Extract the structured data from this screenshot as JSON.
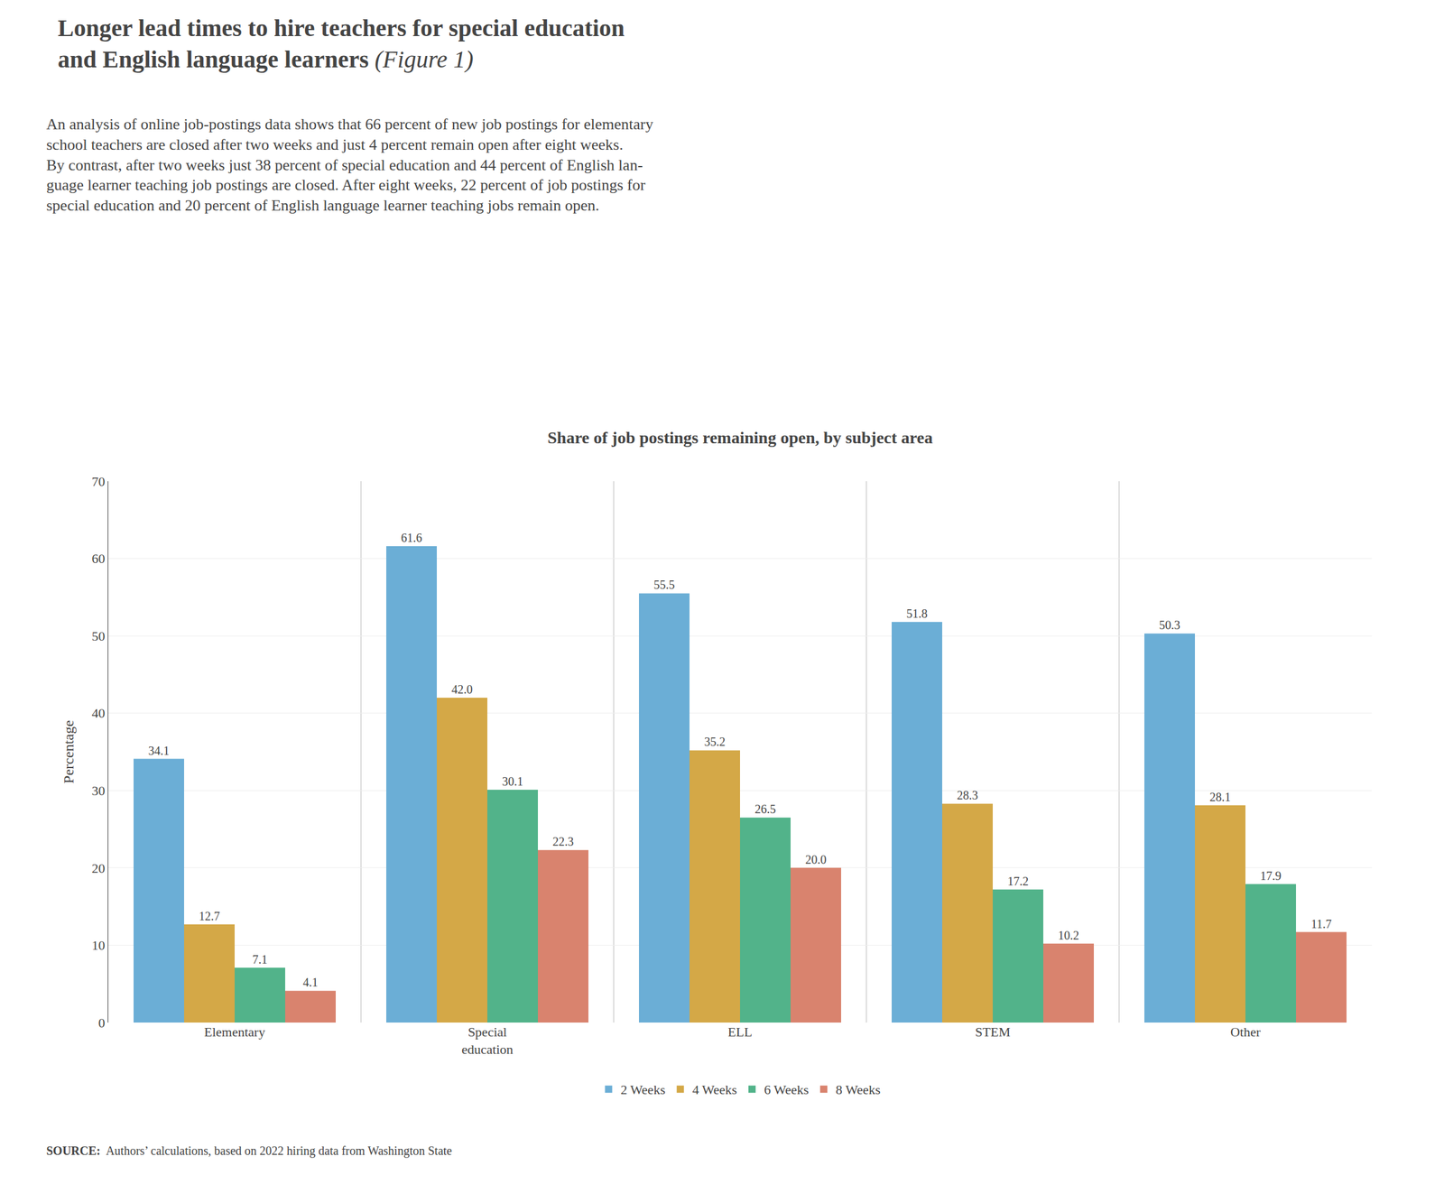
{
  "chart_data": {
    "type": "bar",
    "title": "Longer lead times to hire teachers for special education\nand English language learners",
    "subtitle": "An analysis of online job-postings data shows that 66 percent of new job postings for elementary\nschool teachers are closed after two weeks and just 4 percent remain open after eight weeks.\nBy contrast, after two weeks just 38 percent of special education and 44 percent of English lan-\nguage learner teaching job postings are closed. After eight weeks, 22 percent of job postings for\nspecial education and 20 percent of English language learner teaching jobs remain open.",
    "annotations": [
      "(Figure 1)",
      "Share of job postings remaining open, by subject area",
      "SOURCE:",
      "Authors’ calculations, based on 2022 hiring data from Washington State"
    ],
    "ylabel": "Percentage",
    "categories": [
      "Elementary",
      "Special\neducation",
      "ELL",
      "STEM",
      "Other"
    ],
    "series": [
      {
        "name": "2 Weeks",
        "color": "#6baed6",
        "values": [
          34.1,
          61.6,
          55.5,
          51.8,
          50.3
        ],
        "value_labels": [
          "34.1",
          "61.6",
          "55.5",
          "51.8",
          "50.3"
        ]
      },
      {
        "name": "4 Weeks",
        "color": "#d4a847",
        "values": [
          12.7,
          42.0,
          35.2,
          28.3,
          28.1
        ],
        "value_labels": [
          "12.7",
          "42.0",
          "35.2",
          "28.3",
          "28.1"
        ]
      },
      {
        "name": "6 Weeks",
        "color": "#52b38a",
        "values": [
          7.1,
          30.1,
          26.5,
          17.2,
          17.9
        ],
        "value_labels": [
          "7.1",
          "30.1",
          "26.5",
          "17.2",
          "17.9"
        ]
      },
      {
        "name": "8 Weeks",
        "color": "#d9836e",
        "values": [
          4.1,
          22.3,
          20.0,
          10.2,
          11.7
        ],
        "value_labels": [
          "4.1",
          "22.3",
          "20.0",
          "10.2",
          "11.7"
        ]
      }
    ],
    "ylim": [
      0,
      70
    ],
    "yticks": [
      0,
      10,
      20,
      30,
      40,
      50,
      60,
      70
    ],
    "grid": true,
    "legend": "bottom",
    "data_labels": true
  }
}
